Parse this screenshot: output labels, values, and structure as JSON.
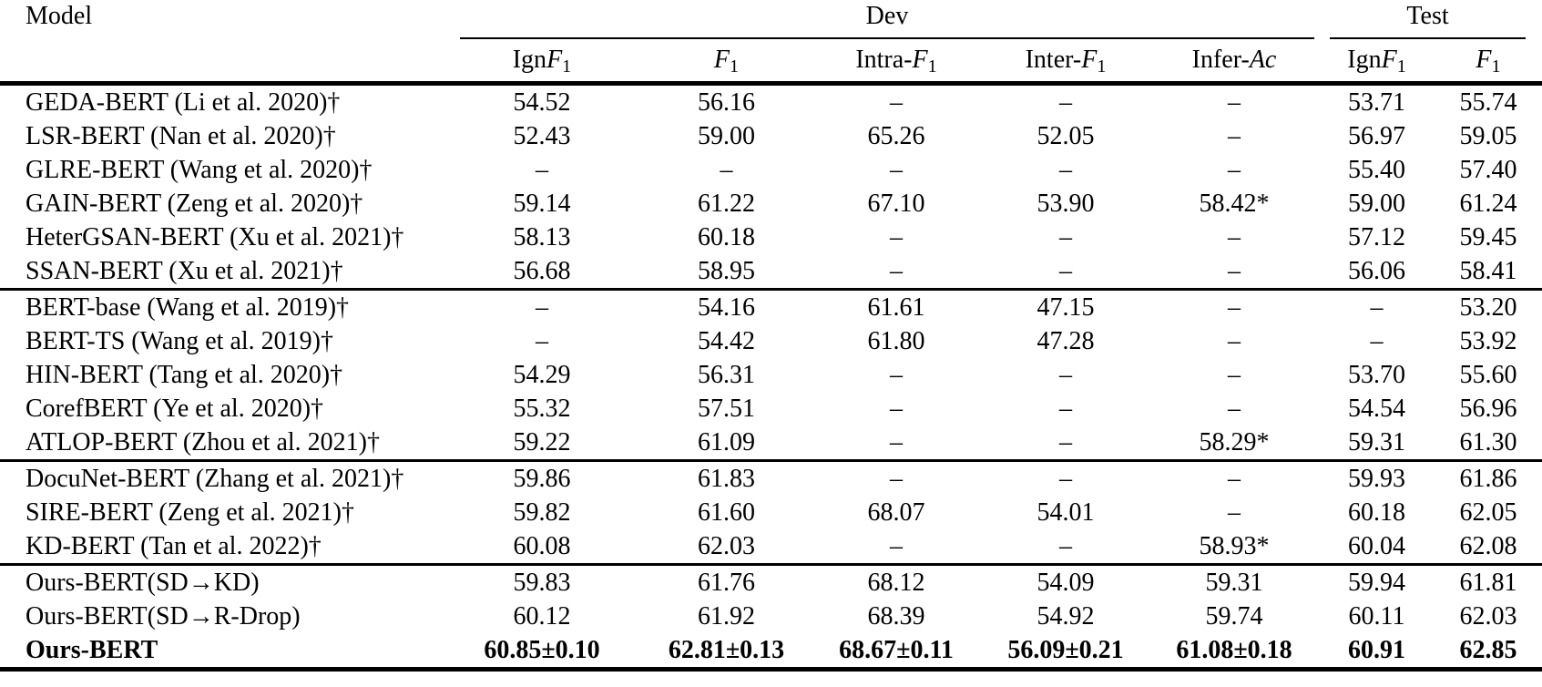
{
  "table": {
    "model_header": "Model",
    "groups": [
      {
        "label": "Dev"
      },
      {
        "label": "Test"
      }
    ],
    "headers": [
      {
        "pre": "Ign",
        "it": "F",
        "sub": "1"
      },
      {
        "pre": "",
        "it": "F",
        "sub": "1"
      },
      {
        "pre": "Intra-",
        "it": "F",
        "sub": "1"
      },
      {
        "pre": "Inter-",
        "it": "F",
        "sub": "1"
      },
      {
        "pre": "Infer-",
        "it": "Ac",
        "sub": ""
      },
      {
        "pre": "Ign",
        "it": "F",
        "sub": "1"
      },
      {
        "pre": "",
        "it": "F",
        "sub": "1"
      }
    ],
    "blocks": [
      {
        "rows": [
          {
            "model": "GEDA-BERT (Li et al. 2020)†",
            "values": [
              "54.52",
              "56.16",
              "–",
              "–",
              "–",
              "53.71",
              "55.74"
            ],
            "bold": false
          },
          {
            "model": "LSR-BERT (Nan et al. 2020)†",
            "values": [
              "52.43",
              "59.00",
              "65.26",
              "52.05",
              "–",
              "56.97",
              "59.05"
            ],
            "bold": false
          },
          {
            "model": "GLRE-BERT (Wang et al. 2020)†",
            "values": [
              "–",
              "–",
              "–",
              "–",
              "–",
              "55.40",
              "57.40"
            ],
            "bold": false
          },
          {
            "model": "GAIN-BERT (Zeng et al. 2020)†",
            "values": [
              "59.14",
              "61.22",
              "67.10",
              "53.90",
              "58.42*",
              "59.00",
              "61.24"
            ],
            "bold": false
          },
          {
            "model": "HeterGSAN-BERT (Xu et al. 2021)†",
            "values": [
              "58.13",
              "60.18",
              "–",
              "–",
              "–",
              "57.12",
              "59.45"
            ],
            "bold": false
          },
          {
            "model": "SSAN-BERT (Xu et al. 2021)†",
            "values": [
              "56.68",
              "58.95",
              "–",
              "–",
              "–",
              "56.06",
              "58.41"
            ],
            "bold": false
          }
        ]
      },
      {
        "rows": [
          {
            "model": "BERT-base (Wang et al. 2019)†",
            "values": [
              "–",
              "54.16",
              "61.61",
              "47.15",
              "–",
              "–",
              "53.20"
            ],
            "bold": false
          },
          {
            "model": "BERT-TS (Wang et al. 2019)†",
            "values": [
              "–",
              "54.42",
              "61.80",
              "47.28",
              "–",
              "–",
              "53.92"
            ],
            "bold": false
          },
          {
            "model": "HIN-BERT (Tang et al. 2020)†",
            "values": [
              "54.29",
              "56.31",
              "–",
              "–",
              "–",
              "53.70",
              "55.60"
            ],
            "bold": false
          },
          {
            "model": "CorefBERT (Ye et al. 2020)†",
            "values": [
              "55.32",
              "57.51",
              "–",
              "–",
              "–",
              "54.54",
              "56.96"
            ],
            "bold": false
          },
          {
            "model": "ATLOP-BERT (Zhou et al. 2021)†",
            "values": [
              "59.22",
              "61.09",
              "–",
              "–",
              "58.29*",
              "59.31",
              "61.30"
            ],
            "bold": false
          }
        ]
      },
      {
        "rows": [
          {
            "model": "DocuNet-BERT (Zhang et al. 2021)†",
            "values": [
              "59.86",
              "61.83",
              "–",
              "–",
              "–",
              "59.93",
              "61.86"
            ],
            "bold": false
          },
          {
            "model": "SIRE-BERT (Zeng et al. 2021)†",
            "values": [
              "59.82",
              "61.60",
              "68.07",
              "54.01",
              "–",
              "60.18",
              "62.05"
            ],
            "bold": false
          },
          {
            "model": "KD-BERT (Tan et al. 2022)†",
            "values": [
              "60.08",
              "62.03",
              "–",
              "–",
              "58.93*",
              "60.04",
              "62.08"
            ],
            "bold": false
          }
        ]
      },
      {
        "rows": [
          {
            "model": "Ours-BERT(SD→KD)",
            "values": [
              "59.83",
              "61.76",
              "68.12",
              "54.09",
              "59.31",
              "59.94",
              "61.81"
            ],
            "bold": false
          },
          {
            "model": "Ours-BERT(SD→R-Drop)",
            "values": [
              "60.12",
              "61.92",
              "68.39",
              "54.92",
              "59.74",
              "60.11",
              "62.03"
            ],
            "bold": false
          },
          {
            "model": "Ours-BERT",
            "values": [
              "60.85±0.10",
              "62.81±0.13",
              "68.67±0.11",
              "56.09±0.21",
              "61.08±0.18",
              "60.91",
              "62.85"
            ],
            "bold": true
          }
        ]
      }
    ]
  }
}
